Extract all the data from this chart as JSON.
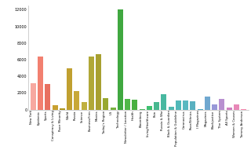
{
  "categories": [
    "New York",
    "Epidemic",
    "Sports",
    "Conspiracy & Living",
    "Race Minority",
    "World",
    "Russia",
    "Science",
    "Business/Firm",
    "Movies",
    "Today's Region",
    "US",
    "Technology",
    "Newsletter / Location",
    "Health",
    "Bloomberg",
    "Living/Healthcare",
    "Pain",
    "Russia & War",
    "Black & Guardian",
    "Population & Guideline",
    "Coronavirus",
    "Race/Ethnics",
    "I Magazines",
    "Magazines",
    "Blackjustice",
    "The System",
    "All Sports",
    "Women & Causes",
    "Tommy Anderson"
  ],
  "values": [
    3200,
    6400,
    3100,
    500,
    150,
    5000,
    2200,
    900,
    6400,
    6700,
    1400,
    250,
    12000,
    1300,
    1200,
    100,
    450,
    950,
    1850,
    350,
    1150,
    1150,
    1050,
    80,
    1550,
    650,
    1250,
    280,
    650,
    80
  ],
  "colors": [
    "#f7a8a0",
    "#f28070",
    "#e87060",
    "#c8a030",
    "#b09820",
    "#c0a030",
    "#c8a838",
    "#c0b040",
    "#b0a838",
    "#a8a030",
    "#98a830",
    "#78b040",
    "#40a840",
    "#50b848",
    "#48b040",
    "#50b860",
    "#40c070",
    "#48b890",
    "#48b8a0",
    "#50b8b0",
    "#50b8b8",
    "#58b8c0",
    "#58b0c0",
    "#50a8c0",
    "#70a8d0",
    "#9898d8",
    "#b890d0",
    "#d080c0",
    "#e888b8",
    "#f888b0"
  ],
  "ylim": [
    0,
    12500
  ],
  "ytick_vals": [
    0,
    2000,
    4000,
    6000,
    8000,
    10000,
    12000
  ],
  "ytick_labels": [
    "0",
    "2000",
    "4000",
    "6000",
    "8000",
    "10000",
    "12000"
  ]
}
